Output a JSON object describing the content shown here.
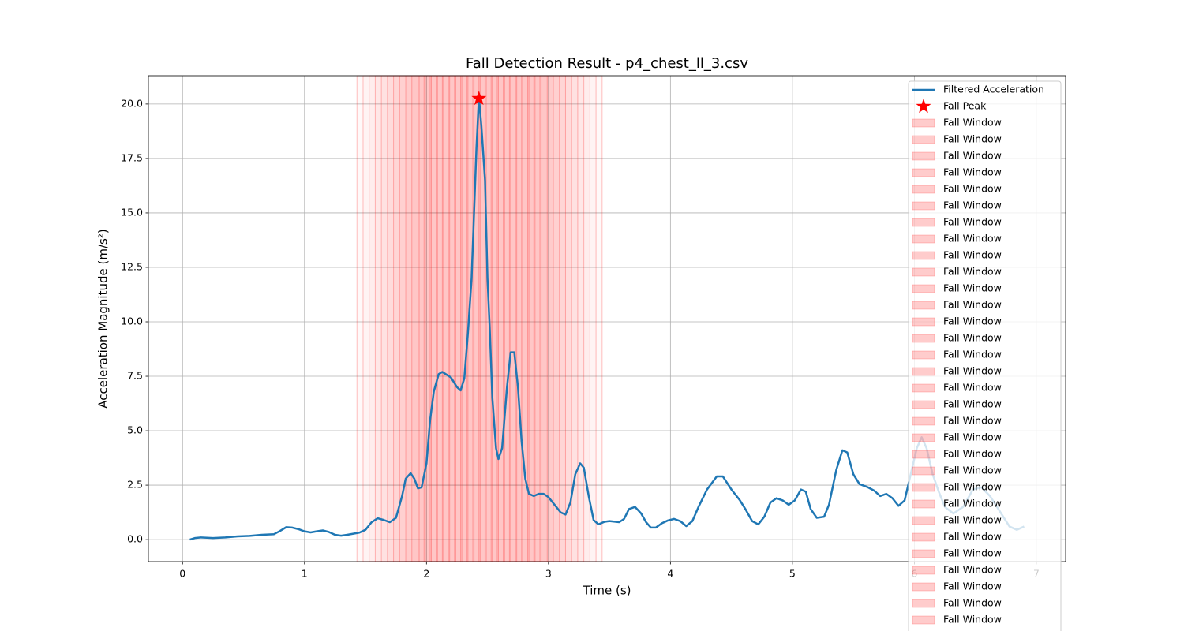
{
  "chart_data": {
    "type": "line",
    "title": "Fall Detection Result - p4_chest_ll_3.csv",
    "x_label": "Time (s)",
    "y_label": "Acceleration Magnitude (m/s²)",
    "xlim": [
      -0.28,
      7.24
    ],
    "ylim": [
      -1.01,
      21.3
    ],
    "xticks": [
      0,
      1,
      2,
      3,
      4,
      5,
      6,
      7
    ],
    "yticks": [
      {
        "value": 0,
        "label": "0.0"
      },
      {
        "value": 2.5,
        "label": "2.5"
      },
      {
        "value": 5,
        "label": "5.0"
      },
      {
        "value": 7.5,
        "label": "7.5"
      },
      {
        "value": 10,
        "label": "10.0"
      },
      {
        "value": 12.5,
        "label": "12.5"
      },
      {
        "value": 15,
        "label": "15.0"
      },
      {
        "value": 17.5,
        "label": "17.5"
      },
      {
        "value": 20,
        "label": "20.0"
      }
    ],
    "grid": true,
    "legend": "upper right",
    "series": [
      {
        "name": "Filtered Acceleration",
        "color": "#1f77b4",
        "x": [
          0.06,
          0.1,
          0.15,
          0.25,
          0.35,
          0.45,
          0.55,
          0.65,
          0.75,
          0.8,
          0.85,
          0.9,
          0.95,
          1.0,
          1.05,
          1.1,
          1.15,
          1.2,
          1.25,
          1.3,
          1.35,
          1.4,
          1.45,
          1.5,
          1.55,
          1.6,
          1.65,
          1.7,
          1.75,
          1.8,
          1.83,
          1.87,
          1.9,
          1.93,
          1.96,
          2.0,
          2.03,
          2.06,
          2.1,
          2.13,
          2.2,
          2.25,
          2.28,
          2.31,
          2.34,
          2.37,
          2.39,
          2.41,
          2.43,
          2.45,
          2.48,
          2.5,
          2.52,
          2.54,
          2.57,
          2.59,
          2.62,
          2.66,
          2.69,
          2.72,
          2.75,
          2.78,
          2.81,
          2.84,
          2.88,
          2.92,
          2.96,
          3.0,
          3.05,
          3.1,
          3.14,
          3.18,
          3.22,
          3.26,
          3.29,
          3.33,
          3.37,
          3.41,
          3.46,
          3.5,
          3.58,
          3.62,
          3.66,
          3.71,
          3.76,
          3.8,
          3.84,
          3.88,
          3.93,
          3.98,
          4.03,
          4.08,
          4.13,
          4.18,
          4.23,
          4.3,
          4.38,
          4.43,
          4.5,
          4.57,
          4.62,
          4.67,
          4.72,
          4.77,
          4.82,
          4.87,
          4.92,
          4.97,
          5.02,
          5.07,
          5.11,
          5.15,
          5.2,
          5.26,
          5.3,
          5.36,
          5.41,
          5.45,
          5.5,
          5.55,
          5.62,
          5.67,
          5.72,
          5.77,
          5.82,
          5.87,
          5.92,
          5.97,
          6.02,
          6.06,
          6.1,
          6.15,
          6.2,
          6.25,
          6.32,
          6.4,
          6.48,
          6.55,
          6.62,
          6.7,
          6.78,
          6.84,
          6.9
        ],
        "values": [
          0.0,
          0.07,
          0.1,
          0.07,
          0.1,
          0.15,
          0.17,
          0.22,
          0.25,
          0.4,
          0.57,
          0.55,
          0.48,
          0.38,
          0.33,
          0.38,
          0.42,
          0.35,
          0.22,
          0.18,
          0.22,
          0.27,
          0.32,
          0.45,
          0.8,
          0.98,
          0.9,
          0.8,
          1.0,
          2.0,
          2.8,
          3.05,
          2.8,
          2.35,
          2.4,
          3.5,
          5.5,
          6.8,
          7.6,
          7.7,
          7.45,
          7.0,
          6.85,
          7.4,
          9.5,
          12.0,
          15.0,
          18.0,
          20.3,
          19.0,
          16.5,
          12.0,
          9.5,
          6.5,
          4.2,
          3.7,
          4.2,
          7.0,
          8.6,
          8.6,
          7.0,
          4.5,
          2.8,
          2.1,
          2.0,
          2.1,
          2.1,
          1.95,
          1.6,
          1.25,
          1.15,
          1.7,
          3.0,
          3.5,
          3.3,
          2.0,
          0.9,
          0.7,
          0.82,
          0.85,
          0.8,
          0.95,
          1.4,
          1.5,
          1.2,
          0.8,
          0.55,
          0.55,
          0.75,
          0.88,
          0.95,
          0.85,
          0.62,
          0.85,
          1.5,
          2.3,
          2.9,
          2.9,
          2.3,
          1.8,
          1.35,
          0.85,
          0.7,
          1.05,
          1.7,
          1.9,
          1.8,
          1.6,
          1.8,
          2.3,
          2.2,
          1.4,
          1.0,
          1.05,
          1.6,
          3.2,
          4.1,
          4.0,
          3.0,
          2.55,
          2.4,
          2.25,
          2.0,
          2.1,
          1.9,
          1.55,
          1.8,
          3.0,
          4.2,
          4.7,
          4.2,
          3.0,
          2.2,
          1.5,
          1.2,
          1.5,
          2.3,
          2.4,
          2.0,
          1.3,
          0.6,
          0.45,
          0.6
        ]
      }
    ],
    "peak": {
      "name": "Fall Peak",
      "color": "#ff0000",
      "x": 2.43,
      "y": 20.25
    },
    "window_color": "#ff0000",
    "fall_windows": [
      {
        "name": "Fall Window",
        "start": 1.43,
        "end": 1.94
      },
      {
        "name": "Fall Window",
        "start": 1.48,
        "end": 1.99
      },
      {
        "name": "Fall Window",
        "start": 1.53,
        "end": 2.04
      },
      {
        "name": "Fall Window",
        "start": 1.58,
        "end": 2.09
      },
      {
        "name": "Fall Window",
        "start": 1.63,
        "end": 2.14
      },
      {
        "name": "Fall Window",
        "start": 1.68,
        "end": 2.19
      },
      {
        "name": "Fall Window",
        "start": 1.73,
        "end": 2.24
      },
      {
        "name": "Fall Window",
        "start": 1.78,
        "end": 2.29
      },
      {
        "name": "Fall Window",
        "start": 1.83,
        "end": 2.34
      },
      {
        "name": "Fall Window",
        "start": 1.88,
        "end": 2.39
      },
      {
        "name": "Fall Window",
        "start": 1.93,
        "end": 2.44
      },
      {
        "name": "Fall Window",
        "start": 1.98,
        "end": 2.49
      },
      {
        "name": "Fall Window",
        "start": 2.03,
        "end": 2.54
      },
      {
        "name": "Fall Window",
        "start": 2.08,
        "end": 2.59
      },
      {
        "name": "Fall Window",
        "start": 2.13,
        "end": 2.64
      },
      {
        "name": "Fall Window",
        "start": 2.18,
        "end": 2.69
      },
      {
        "name": "Fall Window",
        "start": 2.23,
        "end": 2.74
      },
      {
        "name": "Fall Window",
        "start": 2.28,
        "end": 2.79
      },
      {
        "name": "Fall Window",
        "start": 2.33,
        "end": 2.84
      },
      {
        "name": "Fall Window",
        "start": 2.38,
        "end": 2.89
      },
      {
        "name": "Fall Window",
        "start": 2.43,
        "end": 2.94
      },
      {
        "name": "Fall Window",
        "start": 2.48,
        "end": 2.99
      },
      {
        "name": "Fall Window",
        "start": 2.53,
        "end": 3.04
      },
      {
        "name": "Fall Window",
        "start": 2.58,
        "end": 3.09
      },
      {
        "name": "Fall Window",
        "start": 2.63,
        "end": 3.14
      },
      {
        "name": "Fall Window",
        "start": 2.68,
        "end": 3.19
      },
      {
        "name": "Fall Window",
        "start": 2.73,
        "end": 3.24
      },
      {
        "name": "Fall Window",
        "start": 2.78,
        "end": 3.29
      },
      {
        "name": "Fall Window",
        "start": 2.83,
        "end": 3.34
      },
      {
        "name": "Fall Window",
        "start": 2.88,
        "end": 3.39
      },
      {
        "name": "Fall Window",
        "start": 2.93,
        "end": 3.44
      }
    ]
  }
}
